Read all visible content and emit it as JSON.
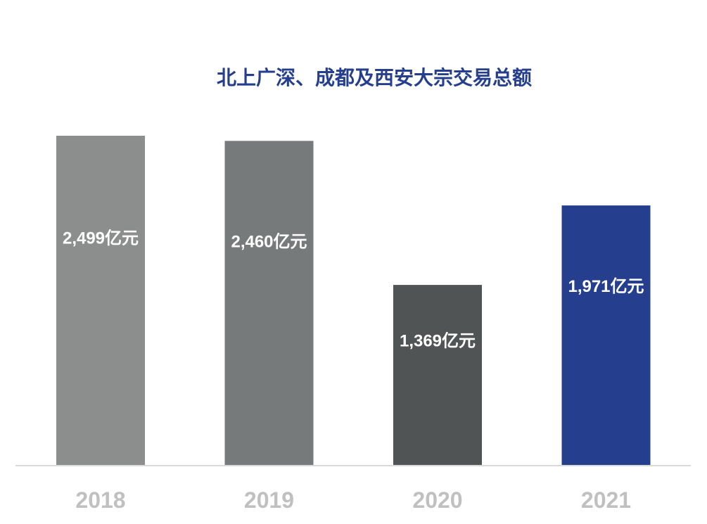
{
  "chart_data": {
    "type": "bar",
    "title": "北上广深、成都及西安大宗交易总额",
    "categories": [
      "2018",
      "2019",
      "2020",
      "2021"
    ],
    "values": [
      2499,
      2460,
      1369,
      1971
    ],
    "data_labels": [
      "2,499亿元",
      "2,460亿元",
      "1,369亿元",
      "1,971亿元"
    ],
    "unit": "亿元",
    "ylim": [
      0,
      2499
    ],
    "grid": false,
    "legend": "none",
    "bar_colors": [
      "#8C8E8E",
      "#767A7A",
      "#515454",
      "#253F8E"
    ],
    "title_color": "#253F8E",
    "axis_line_color": "#D9D9D9",
    "tick_label_color": "#C0C0C0"
  }
}
